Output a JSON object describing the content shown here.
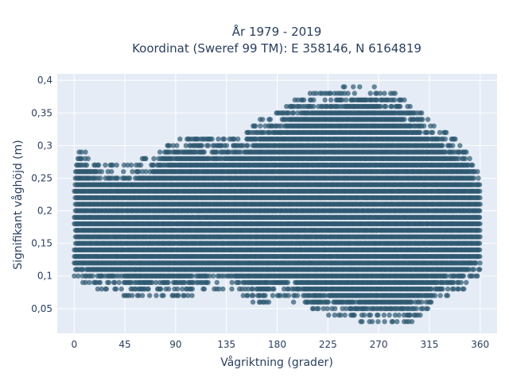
{
  "chart_data": {
    "type": "scatter",
    "title_line1": "År 1979 - 2019",
    "title_line2": "Koordinat (Sweref 99 TM): E 358146, N 6164819",
    "xlabel": "Vågriktning (grader)",
    "ylabel": "Signifikant våghöjd (m)",
    "xlim": [
      -15,
      375
    ],
    "ylim": [
      0.012,
      0.41
    ],
    "x_ticks": [
      0,
      45,
      90,
      135,
      180,
      225,
      270,
      315,
      360
    ],
    "x_tick_labels": [
      "0",
      "45",
      "90",
      "135",
      "180",
      "225",
      "270",
      "315",
      "360"
    ],
    "y_ticks": [
      0.05,
      0.1,
      0.15,
      0.2,
      0.25,
      0.3,
      0.35,
      0.4
    ],
    "y_tick_labels": [
      "0,05",
      "0,1",
      "0,15",
      "0,2",
      "0,25",
      "0,3",
      "0,35",
      "0,4"
    ],
    "grid": true,
    "legend": "none",
    "marker_color": "#2e5870",
    "plot_background": "#e5ecf6",
    "y_levels": [
      0.03,
      0.04,
      0.05,
      0.06,
      0.07,
      0.08,
      0.09,
      0.1,
      0.11,
      0.12,
      0.13,
      0.14,
      0.15,
      0.16,
      0.17,
      0.18,
      0.19,
      0.2,
      0.21,
      0.22,
      0.23,
      0.24,
      0.25,
      0.26,
      0.27,
      0.28,
      0.29,
      0.3,
      0.31,
      0.32,
      0.33,
      0.34,
      0.35,
      0.36,
      0.37,
      0.38,
      0.39
    ],
    "upper_envelope": [
      {
        "x": 0,
        "y": 0.27
      },
      {
        "x": 5,
        "y": 0.3
      },
      {
        "x": 15,
        "y": 0.28
      },
      {
        "x": 30,
        "y": 0.27
      },
      {
        "x": 45,
        "y": 0.27
      },
      {
        "x": 60,
        "y": 0.28
      },
      {
        "x": 75,
        "y": 0.29
      },
      {
        "x": 90,
        "y": 0.31
      },
      {
        "x": 105,
        "y": 0.32
      },
      {
        "x": 120,
        "y": 0.31
      },
      {
        "x": 135,
        "y": 0.31
      },
      {
        "x": 150,
        "y": 0.32
      },
      {
        "x": 165,
        "y": 0.34
      },
      {
        "x": 180,
        "y": 0.35
      },
      {
        "x": 195,
        "y": 0.37
      },
      {
        "x": 210,
        "y": 0.38
      },
      {
        "x": 225,
        "y": 0.38
      },
      {
        "x": 240,
        "y": 0.39
      },
      {
        "x": 255,
        "y": 0.39
      },
      {
        "x": 270,
        "y": 0.39
      },
      {
        "x": 285,
        "y": 0.38
      },
      {
        "x": 300,
        "y": 0.36
      },
      {
        "x": 315,
        "y": 0.34
      },
      {
        "x": 330,
        "y": 0.32
      },
      {
        "x": 345,
        "y": 0.3
      },
      {
        "x": 355,
        "y": 0.27
      },
      {
        "x": 360,
        "y": 0.25
      }
    ],
    "lower_envelope": [
      {
        "x": 0,
        "y": 0.09
      },
      {
        "x": 15,
        "y": 0.08
      },
      {
        "x": 30,
        "y": 0.08
      },
      {
        "x": 45,
        "y": 0.07
      },
      {
        "x": 60,
        "y": 0.06
      },
      {
        "x": 75,
        "y": 0.07
      },
      {
        "x": 90,
        "y": 0.07
      },
      {
        "x": 105,
        "y": 0.07
      },
      {
        "x": 120,
        "y": 0.08
      },
      {
        "x": 135,
        "y": 0.08
      },
      {
        "x": 150,
        "y": 0.07
      },
      {
        "x": 165,
        "y": 0.05
      },
      {
        "x": 180,
        "y": 0.07
      },
      {
        "x": 195,
        "y": 0.06
      },
      {
        "x": 210,
        "y": 0.05
      },
      {
        "x": 225,
        "y": 0.04
      },
      {
        "x": 240,
        "y": 0.04
      },
      {
        "x": 255,
        "y": 0.03
      },
      {
        "x": 270,
        "y": 0.03
      },
      {
        "x": 285,
        "y": 0.03
      },
      {
        "x": 300,
        "y": 0.03
      },
      {
        "x": 315,
        "y": 0.05
      },
      {
        "x": 330,
        "y": 0.07
      },
      {
        "x": 345,
        "y": 0.08
      },
      {
        "x": 360,
        "y": 0.1
      }
    ]
  }
}
